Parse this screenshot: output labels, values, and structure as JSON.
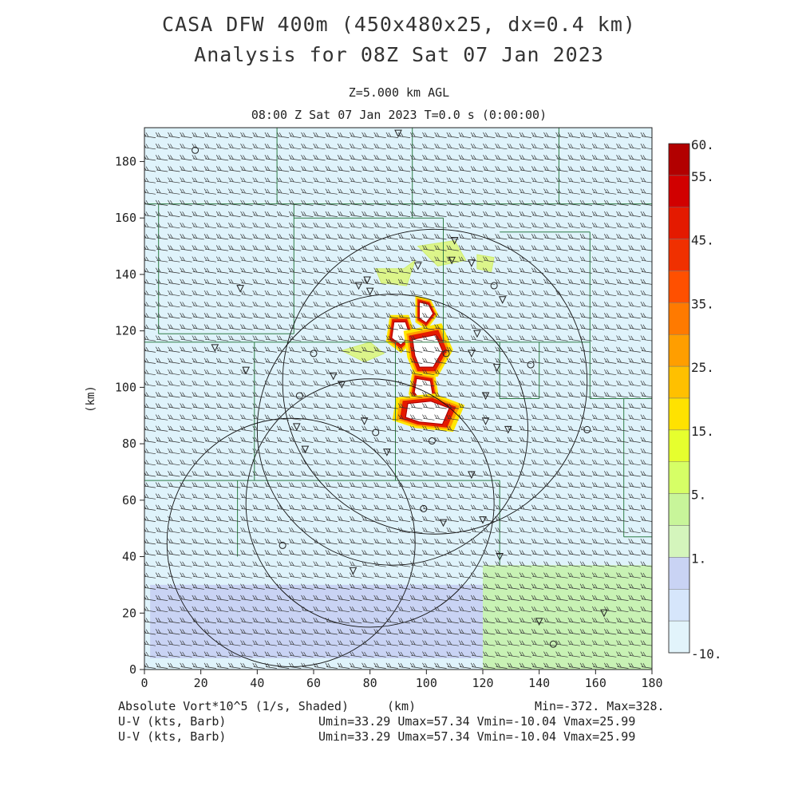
{
  "header": {
    "title_line1": "CASA DFW 400m (450x480x25, dx=0.4 km)",
    "title_line2": "Analysis for 08Z Sat 07 Jan 2023",
    "level": "Z=5.000 km AGL",
    "time": "08:00 Z Sat 07 Jan 2023    T=0.0 s (0:00:00)"
  },
  "footer": {
    "field1": "Absolute Vort*10^5 (1/s, Shaded)",
    "field1_units": "(km)",
    "field1_range": "Min=-372. Max=328.",
    "field2": "U-V (kts, Barb)",
    "field2_range": "Umin=33.29 Umax=57.34 Vmin=-10.04 Vmax=25.99",
    "field3": "U-V (kts, Barb)",
    "field3_range": "Umin=33.29 Umax=57.34 Vmin=-10.04 Vmax=25.99"
  },
  "colors": {
    "background_field": "#dff3fb",
    "green_field": "#c8f2b4",
    "lavender_field": "#c9d3f4",
    "boundaries": "#2e7d46",
    "barbs": "#333333",
    "range_rings": "#111111"
  },
  "chart_data": {
    "type": "heatmap",
    "x": {
      "label": "(km)",
      "range": [
        0,
        180
      ],
      "ticks": [
        "0",
        "20",
        "40",
        "60",
        "80",
        "100",
        "120",
        "140",
        "160",
        "180"
      ]
    },
    "y": {
      "label": "(km)",
      "range": [
        0,
        192
      ],
      "ticks": [
        "0",
        "20",
        "40",
        "60",
        "80",
        "100",
        "120",
        "140",
        "160",
        "180"
      ]
    },
    "colorbar": {
      "labels": [
        "60.",
        "55.",
        "45.",
        "35.",
        "25.",
        "15.",
        "5.",
        "1.",
        "-10."
      ],
      "label_values": [
        60,
        55,
        45,
        35,
        25,
        15,
        5,
        1,
        -10
      ],
      "colors": [
        "#b20000",
        "#d10000",
        "#e41a00",
        "#f03000",
        "#ff5000",
        "#ff7a00",
        "#ff9e00",
        "#ffc000",
        "#ffe200",
        "#e6ff2e",
        "#d6ff66",
        "#c8f59a",
        "#d4f5bc",
        "#c9d3f4",
        "#d6e6fb",
        "#e2f4fb"
      ]
    },
    "range_rings": [
      {
        "center_km": [
          103,
          102
        ],
        "radius_km": 54
      },
      {
        "center_km": [
          88,
          85
        ],
        "radius_km": 48
      },
      {
        "center_km": [
          80,
          59
        ],
        "radius_km": 44
      },
      {
        "center_km": [
          52,
          45
        ],
        "radius_km": 44
      }
    ],
    "shaded_regions": [
      {
        "name": "lavender_south",
        "value_class": "1",
        "polygon_km": [
          [
            2,
            30
          ],
          [
            130,
            30
          ],
          [
            130,
            4
          ],
          [
            2,
            4
          ]
        ]
      },
      {
        "name": "green_southeast",
        "value_class": "5",
        "polygon_km": [
          [
            120,
            37
          ],
          [
            180,
            37
          ],
          [
            180,
            0
          ],
          [
            120,
            0
          ]
        ]
      }
    ],
    "storm_core": {
      "value_class": "45",
      "center_km": [
        100,
        105
      ],
      "features_km": [
        [
          [
            97,
            131
          ],
          [
            101,
            130
          ],
          [
            103,
            126
          ],
          [
            100,
            122
          ],
          [
            97,
            124
          ]
        ],
        [
          [
            88,
            124
          ],
          [
            93,
            124
          ],
          [
            95,
            118
          ],
          [
            91,
            114
          ],
          [
            87,
            117
          ]
        ],
        [
          [
            94,
            118
          ],
          [
            104,
            120
          ],
          [
            107,
            113
          ],
          [
            103,
            106
          ],
          [
            97,
            106
          ],
          [
            95,
            111
          ]
        ],
        [
          [
            96,
            104
          ],
          [
            102,
            103
          ],
          [
            103,
            97
          ],
          [
            98,
            94
          ],
          [
            95,
            98
          ]
        ],
        [
          [
            92,
            95
          ],
          [
            102,
            96
          ],
          [
            110,
            93
          ],
          [
            107,
            86
          ],
          [
            97,
            87
          ],
          [
            91,
            89
          ]
        ]
      ]
    },
    "weak_echoes_km": [
      [
        [
          82,
          142
        ],
        [
          92,
          142
        ],
        [
          96,
          145
        ],
        [
          93,
          136
        ],
        [
          84,
          137
        ]
      ],
      [
        [
          97,
          150
        ],
        [
          110,
          152
        ],
        [
          114,
          145
        ],
        [
          104,
          143
        ]
      ],
      [
        [
          118,
          147
        ],
        [
          124,
          146
        ],
        [
          123,
          141
        ],
        [
          118,
          142
        ]
      ],
      [
        [
          70,
          113
        ],
        [
          80,
          116
        ],
        [
          85,
          112
        ],
        [
          78,
          109
        ]
      ]
    ]
  }
}
